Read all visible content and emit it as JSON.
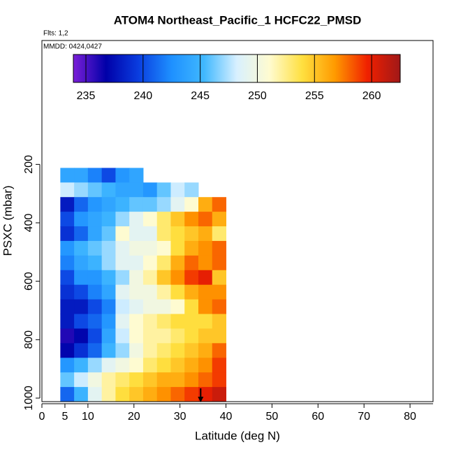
{
  "chart_data": {
    "type": "curtain",
    "title": "ATOM4 Northeast_Pacific_1 HCFC22_PMSD",
    "flights_label": "Flts: 1,2",
    "dates_label": "MMDD: 0424,0427",
    "xlabel": "Latitude (deg N)",
    "ylabel": "PSXC (mbar)",
    "xlim": [
      0,
      85
    ],
    "xticks": [
      0,
      5,
      10,
      20,
      30,
      40,
      50,
      60,
      70,
      80
    ],
    "ylim": [
      1012,
      -224
    ],
    "yticks": [
      200,
      400,
      600,
      800,
      1000
    ],
    "colorbar_lim": [
      233.9,
      262.5
    ],
    "colorbar_ticks": [
      235,
      240,
      245,
      250,
      255,
      260
    ],
    "colors": [
      "#7b1fd8",
      "#0000a8",
      "#0a3ee0",
      "#1e90ff",
      "#40b8ff",
      "#d8f0ff",
      "#fffbd0",
      "#ffe040",
      "#ff9a00",
      "#f02000",
      "#a01818"
    ],
    "lat_edges": [
      4,
      7,
      10,
      13,
      16,
      19,
      22,
      25,
      28,
      31,
      34,
      37,
      40
    ],
    "pressure_edges": [
      212,
      262,
      312,
      362,
      412,
      462,
      512,
      562,
      612,
      662,
      712,
      762,
      812,
      862,
      912,
      962,
      1012
    ],
    "values": [
      [
        244,
        244,
        242,
        240,
        243,
        244,
        null,
        null,
        null,
        null,
        null,
        null
      ],
      [
        248,
        247,
        246,
        245,
        244,
        244,
        243,
        246,
        248,
        247,
        null,
        null
      ],
      [
        238,
        241,
        243,
        244,
        245,
        246,
        246,
        247,
        249,
        251,
        256,
        258
      ],
      [
        240,
        243,
        244,
        245,
        247,
        249,
        251,
        253,
        255,
        257,
        258,
        256
      ],
      [
        239,
        241,
        244,
        246,
        251,
        249,
        249,
        253,
        254,
        255,
        256,
        253
      ],
      [
        243,
        245,
        246,
        247,
        249,
        250,
        250,
        251,
        254,
        256,
        257,
        258
      ],
      [
        242,
        244,
        245,
        247,
        249,
        249,
        251,
        253,
        256,
        258,
        257,
        258
      ],
      [
        240,
        243,
        243,
        245,
        247,
        250,
        252,
        255,
        257,
        259,
        260,
        255
      ],
      [
        239,
        240,
        242,
        244,
        249,
        250,
        250,
        252,
        254,
        256,
        257,
        257
      ],
      [
        238,
        238,
        240,
        242,
        248,
        249,
        250,
        250,
        251,
        254,
        257,
        258
      ],
      [
        238,
        240,
        241,
        243,
        249,
        251,
        252,
        253,
        254,
        254,
        254,
        255
      ],
      [
        236,
        237,
        240,
        244,
        248,
        251,
        252,
        252,
        253,
        254,
        255,
        255
      ],
      [
        237,
        239,
        241,
        245,
        247,
        250,
        252,
        253,
        254,
        255,
        256,
        258
      ],
      [
        243,
        245,
        247,
        249,
        250,
        251,
        253,
        254,
        255,
        256,
        257,
        259
      ],
      [
        246,
        248,
        250,
        252,
        253,
        254,
        255,
        256,
        256,
        257,
        258,
        259
      ],
      [
        241,
        245,
        249,
        252,
        254,
        255,
        256,
        257,
        258,
        259,
        260,
        261
      ]
    ],
    "marker_lat": 34.5
  }
}
